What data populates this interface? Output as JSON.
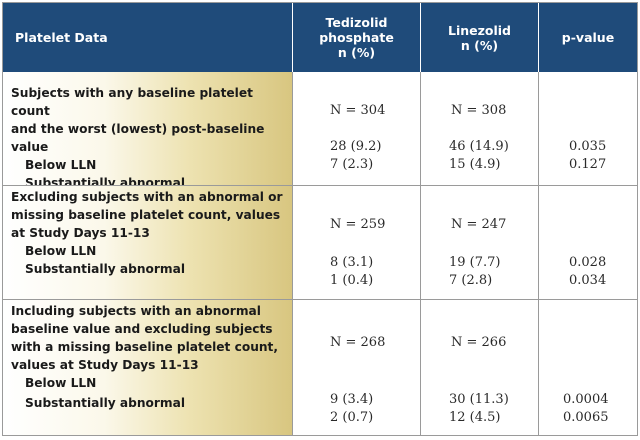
{
  "header": {
    "col1": "Platelet Data",
    "col2_line1": "Tedizolid",
    "col2_line2": "phosphate",
    "col2_line3": "n (%)",
    "col3_line1": "Linezolid",
    "col3_line2": "n (%)",
    "col4": "p-value"
  },
  "sections": [
    {
      "label_lines": [
        "Subjects with any baseline platelet count",
        "and the worst (lowest) post-baseline",
        "value"
      ],
      "n_tedizolid": "N = 304",
      "n_linezolid": "N = 308",
      "rows": [
        {
          "label": "Below LLN",
          "tedizolid": "28 (9.2)",
          "linezolid": "46 (14.9)",
          "p": "0.035"
        },
        {
          "label": "Substantially abnormal",
          "tedizolid": "7 (2.3)",
          "linezolid": "15 (4.9)",
          "p": "0.127"
        }
      ]
    },
    {
      "label_lines": [
        "Excluding subjects with an abnormal or",
        "missing baseline platelet count, values",
        "at Study Days 11-13"
      ],
      "n_tedizolid": "N = 259",
      "n_linezolid": "N = 247",
      "rows": [
        {
          "label": "Below LLN",
          "tedizolid": "8 (3.1)",
          "linezolid": "19 (7.7)",
          "p": "0.028"
        },
        {
          "label": "Substantially abnormal",
          "tedizolid": "1 (0.4)",
          "linezolid": "7 (2.8)",
          "p": "0.034"
        }
      ]
    },
    {
      "label_lines": [
        "Including subjects with an abnormal",
        "baseline value and excluding subjects",
        "with a missing baseline platelet count,",
        "values at Study Days 11-13"
      ],
      "n_tedizolid": "N = 268",
      "n_linezolid": "N = 266",
      "rows": [
        {
          "label": "Below LLN",
          "tedizolid": "9 (3.4)",
          "linezolid": "30 (11.3)",
          "p": "0.0004"
        },
        {
          "label": "Substantially abnormal",
          "tedizolid": "2 (0.7)",
          "linezolid": "12 (4.5)",
          "p": "0.0065"
        }
      ]
    }
  ]
}
